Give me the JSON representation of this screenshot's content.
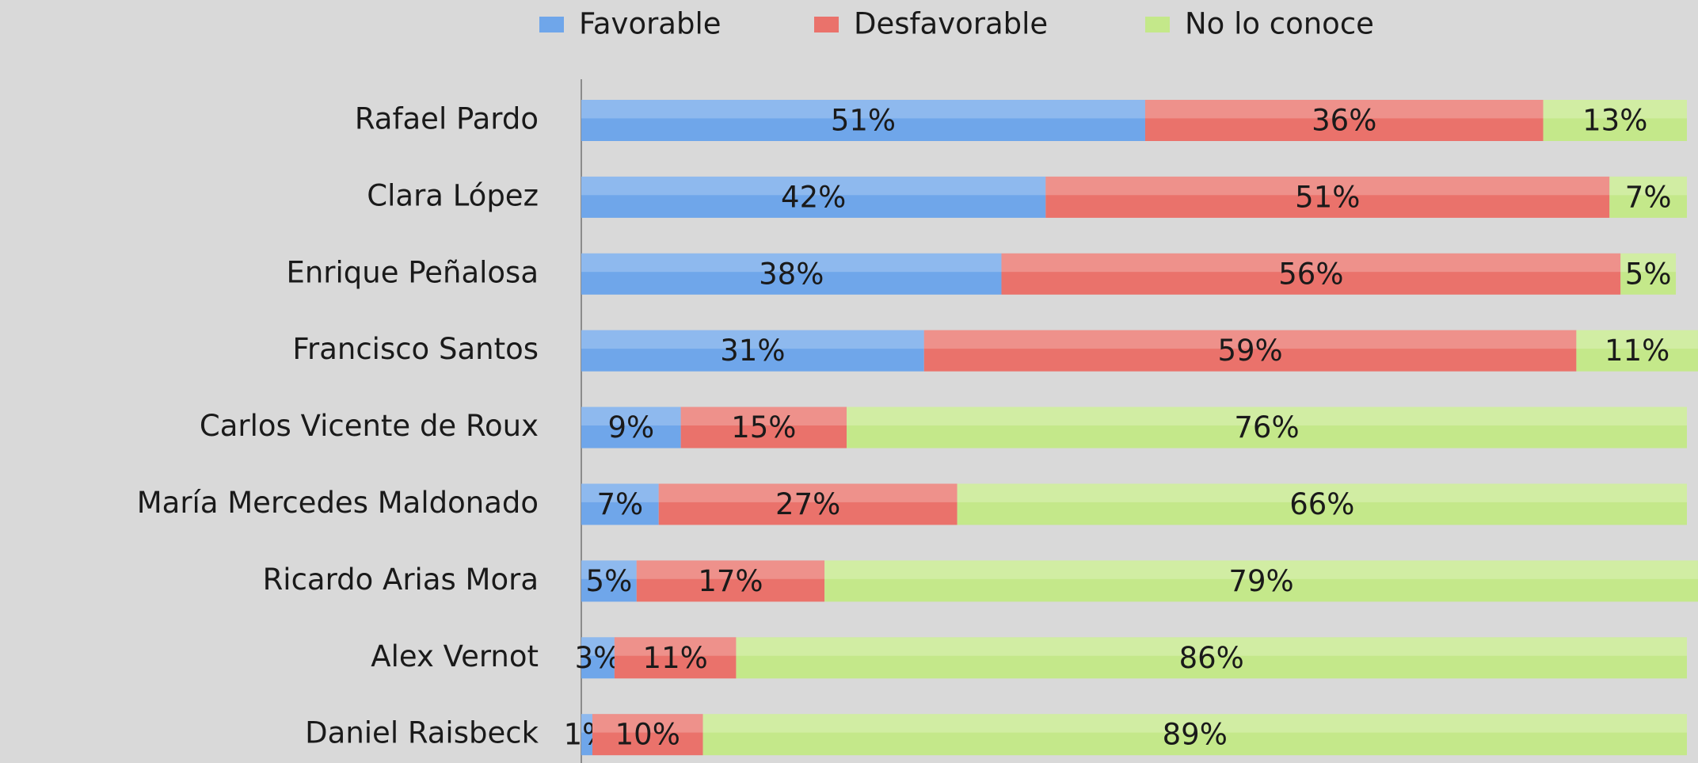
{
  "chart_data": {
    "type": "stacked_bar_horizontal",
    "categories": [
      "Rafael Pardo",
      "Clara López",
      "Enrique Peñalosa",
      "Francisco Santos",
      "Carlos Vicente de Roux",
      "María Mercedes Maldonado",
      "Ricardo Arias Mora",
      "Alex Vernot",
      "Daniel Raisbeck"
    ],
    "series": [
      {
        "name": "Favorable",
        "color": "#6fa6ea",
        "values": [
          51,
          42,
          38,
          31,
          9,
          7,
          5,
          3,
          1
        ],
        "value_labels": [
          "51%",
          "42%",
          "38%",
          "31%",
          "9%",
          "7%",
          "5%",
          "3%",
          "1%"
        ]
      },
      {
        "name": "Desfavorable",
        "color": "#ea726b",
        "values": [
          36,
          51,
          56,
          59,
          15,
          27,
          17,
          11,
          10
        ],
        "value_labels": [
          "36%",
          "51%",
          "56%",
          "59%",
          "15%",
          "27%",
          "17%",
          "11%",
          "10%"
        ]
      },
      {
        "name": "No lo conoce",
        "color": "#c4e88a",
        "values": [
          13,
          7,
          5,
          11,
          76,
          66,
          79,
          86,
          89
        ],
        "value_labels": [
          "13%",
          "7%",
          "5%",
          "11%",
          "76%",
          "66%",
          "79%",
          "86%",
          "89%"
        ]
      }
    ],
    "xlim": [
      0,
      100
    ],
    "legend": "top"
  }
}
